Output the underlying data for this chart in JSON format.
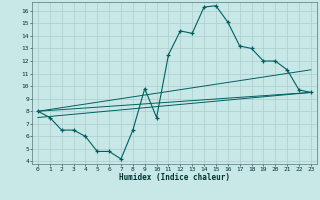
{
  "xlabel": "Humidex (Indice chaleur)",
  "bg_color": "#c8e8e8",
  "grid_color": "#b0cccc",
  "line_color": "#006060",
  "xlim": [
    -0.5,
    23.5
  ],
  "ylim": [
    3.8,
    16.7
  ],
  "yticks": [
    4,
    5,
    6,
    7,
    8,
    9,
    10,
    11,
    12,
    13,
    14,
    15,
    16
  ],
  "xticks": [
    0,
    1,
    2,
    3,
    4,
    5,
    6,
    7,
    8,
    9,
    10,
    11,
    12,
    13,
    14,
    15,
    16,
    17,
    18,
    19,
    20,
    21,
    22,
    23
  ],
  "series_x": [
    0,
    1,
    2,
    3,
    4,
    5,
    6,
    7,
    8,
    9,
    10,
    11,
    12,
    13,
    14,
    15,
    16,
    17,
    18,
    19,
    20,
    21,
    22,
    23
  ],
  "series_y": [
    8.0,
    7.5,
    6.5,
    6.5,
    6.0,
    4.8,
    4.8,
    4.2,
    6.5,
    9.8,
    7.5,
    12.5,
    14.4,
    14.2,
    16.3,
    16.4,
    15.1,
    13.2,
    13.0,
    12.0,
    12.0,
    11.3,
    9.7,
    9.5
  ],
  "lines": [
    {
      "x": [
        0,
        23
      ],
      "y": [
        8.0,
        9.5
      ]
    },
    {
      "x": [
        0,
        23
      ],
      "y": [
        8.0,
        11.3
      ]
    },
    {
      "x": [
        0,
        23
      ],
      "y": [
        7.5,
        9.5
      ]
    }
  ]
}
